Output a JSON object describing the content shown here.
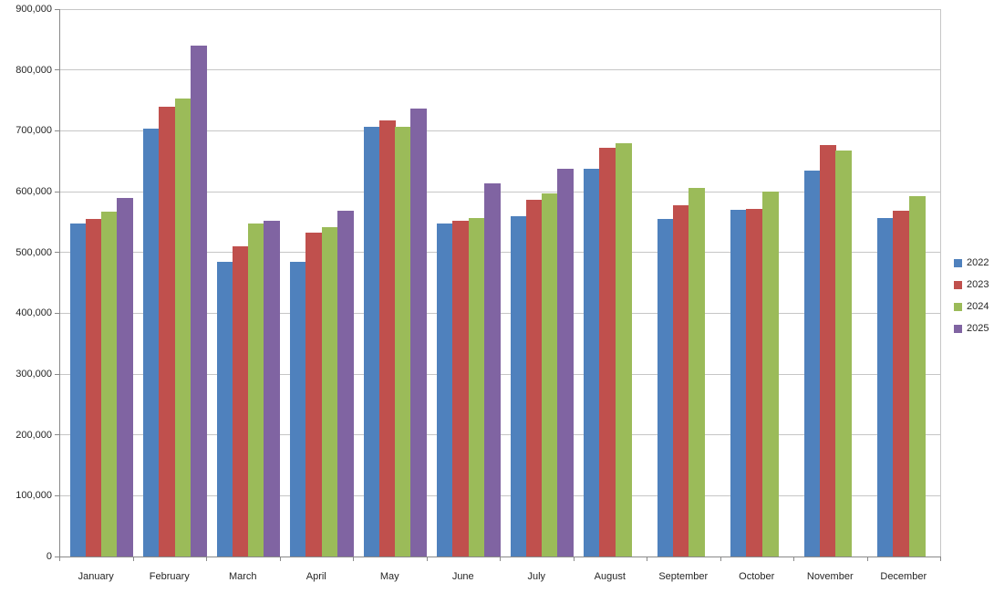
{
  "chart_data": {
    "type": "bar",
    "title": "",
    "xlabel": "",
    "ylabel": "",
    "categories": [
      "January",
      "February",
      "March",
      "April",
      "May",
      "June",
      "July",
      "August",
      "September",
      "October",
      "November",
      "December"
    ],
    "series": [
      {
        "name": "2022",
        "color": "#4F81BD",
        "values": [
          547000,
          703000,
          485000,
          485000,
          707000,
          547000,
          560000,
          638000,
          555000,
          570000,
          635000,
          557000
        ]
      },
      {
        "name": "2023",
        "color": "#C0504D",
        "values": [
          555000,
          740000,
          510000,
          532000,
          717000,
          552000,
          587000,
          672000,
          577000,
          572000,
          677000,
          568000
        ]
      },
      {
        "name": "2024",
        "color": "#9BBB59",
        "values": [
          567000,
          753000,
          547000,
          541000,
          707000,
          557000,
          597000,
          680000,
          606000,
          600000,
          668000,
          592000
        ]
      },
      {
        "name": "2025",
        "color": "#8064A2",
        "values": [
          589000,
          840000,
          552000,
          568000,
          736000,
          613000,
          638000,
          null,
          null,
          null,
          null,
          null
        ]
      }
    ],
    "ylim": [
      0,
      900000
    ],
    "ytick_step": 100000,
    "ytick_labels": [
      "0",
      "100,000",
      "200,000",
      "300,000",
      "400,000",
      "500,000",
      "600,000",
      "700,000",
      "800,000",
      "900,000"
    ],
    "grid": true,
    "legend_position": "right",
    "legend_entries": [
      "2022",
      "2023",
      "2024",
      "2025"
    ]
  },
  "colors": {
    "background": "#FFFFFF",
    "gridline": "#C6C6C6",
    "plot_border": "#C6C6C6",
    "axis": "#898989",
    "text": "#262626"
  }
}
